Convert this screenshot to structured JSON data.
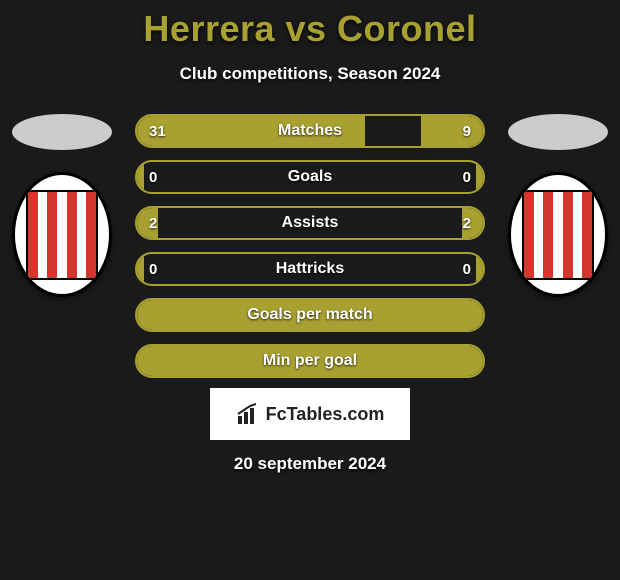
{
  "title": "Herrera vs Coronel",
  "subtitle": "Club competitions, Season 2024",
  "date": "20 september 2024",
  "brand": "FcTables.com",
  "colors": {
    "accent": "#a8a030",
    "background": "#1a1a1a",
    "text": "#ffffff",
    "badge_stripe_red": "#d4362e",
    "badge_white": "#ffffff"
  },
  "player_left": {
    "name": "Herrera",
    "club_stripes": [
      "#d4362e",
      "#ffffff",
      "#d4362e",
      "#ffffff",
      "#d4362e",
      "#ffffff",
      "#d4362e"
    ]
  },
  "player_right": {
    "name": "Coronel",
    "club_stripes": [
      "#d4362e",
      "#ffffff",
      "#d4362e",
      "#ffffff",
      "#d4362e",
      "#ffffff",
      "#d4362e"
    ]
  },
  "stats": [
    {
      "label": "Matches",
      "left_value": "31",
      "right_value": "9",
      "left_fill_pct": 66,
      "right_fill_pct": 18,
      "show_values": true
    },
    {
      "label": "Goals",
      "left_value": "0",
      "right_value": "0",
      "left_fill_pct": 2,
      "right_fill_pct": 2,
      "show_values": true
    },
    {
      "label": "Assists",
      "left_value": "2",
      "right_value": "2",
      "left_fill_pct": 6,
      "right_fill_pct": 6,
      "show_values": true
    },
    {
      "label": "Hattricks",
      "left_value": "0",
      "right_value": "0",
      "left_fill_pct": 2,
      "right_fill_pct": 2,
      "show_values": true
    },
    {
      "label": "Goals per match",
      "full_fill": true,
      "show_values": false
    },
    {
      "label": "Min per goal",
      "full_fill": true,
      "show_values": false
    }
  ],
  "styling": {
    "title_fontsize": 36,
    "subtitle_fontsize": 17,
    "stat_label_fontsize": 16,
    "stat_value_fontsize": 15,
    "stat_row_height": 34,
    "stat_row_gap": 12,
    "stat_border_radius": 17,
    "stat_border_width": 2,
    "stats_col_width": 350,
    "player_col_width": 110
  }
}
